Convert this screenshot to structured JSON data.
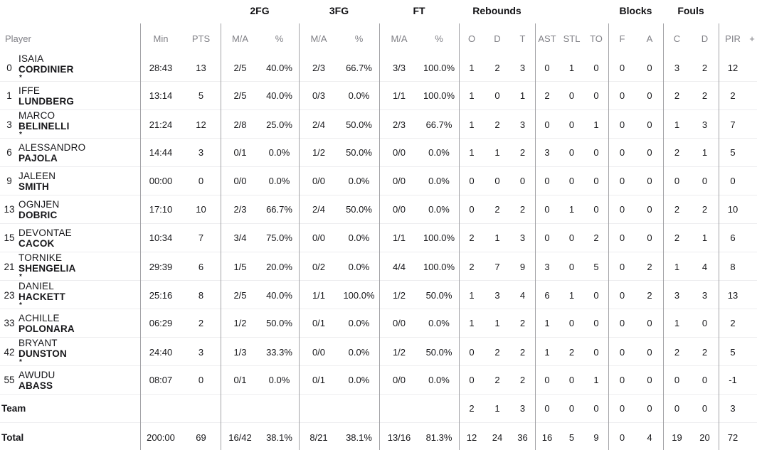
{
  "colors": {
    "background": "#ffffff",
    "text_dark": "#17171a",
    "header_gray": "#7f7f85",
    "vertical_line": "#a2a2a6",
    "row_line": "#ededef"
  },
  "groups": {
    "fg2": "2FG",
    "fg3": "3FG",
    "ft": "FT",
    "rebounds": "Rebounds",
    "blocks": "Blocks",
    "fouls": "Fouls"
  },
  "header": {
    "player": "Player",
    "min": "Min",
    "pts": "PTS",
    "ma": "M/A",
    "pct": "%",
    "o": "O",
    "d": "D",
    "t": "T",
    "ast": "AST",
    "stl": "STL",
    "to": "TO",
    "f": "F",
    "a": "A",
    "c": "C",
    "dd": "D",
    "pir": "PIR",
    "plus": "+"
  },
  "starter_mark": "*",
  "rows": [
    {
      "num": "0",
      "first": "ISAIA",
      "last": "CORDINIER",
      "starter": true,
      "min": "28:43",
      "pts": "13",
      "fg2": [
        "2/5",
        "40.0%"
      ],
      "fg3": [
        "2/3",
        "66.7%"
      ],
      "ft": [
        "3/3",
        "100.0%"
      ],
      "reb": [
        "1",
        "2",
        "3"
      ],
      "ast": "0",
      "stl": "1",
      "to": "0",
      "blocks": [
        "0",
        "0"
      ],
      "fouls": [
        "3",
        "2"
      ],
      "pir": "12"
    },
    {
      "num": "1",
      "first": "IFFE",
      "last": "LUNDBERG",
      "starter": false,
      "min": "13:14",
      "pts": "5",
      "fg2": [
        "2/5",
        "40.0%"
      ],
      "fg3": [
        "0/3",
        "0.0%"
      ],
      "ft": [
        "1/1",
        "100.0%"
      ],
      "reb": [
        "1",
        "0",
        "1"
      ],
      "ast": "2",
      "stl": "0",
      "to": "0",
      "blocks": [
        "0",
        "0"
      ],
      "fouls": [
        "2",
        "2"
      ],
      "pir": "2"
    },
    {
      "num": "3",
      "first": "MARCO",
      "last": "BELINELLI",
      "starter": true,
      "min": "21:24",
      "pts": "12",
      "fg2": [
        "2/8",
        "25.0%"
      ],
      "fg3": [
        "2/4",
        "50.0%"
      ],
      "ft": [
        "2/3",
        "66.7%"
      ],
      "reb": [
        "1",
        "2",
        "3"
      ],
      "ast": "0",
      "stl": "0",
      "to": "1",
      "blocks": [
        "0",
        "0"
      ],
      "fouls": [
        "1",
        "3"
      ],
      "pir": "7"
    },
    {
      "num": "6",
      "first": "ALESSANDRO",
      "last": "PAJOLA",
      "starter": false,
      "min": "14:44",
      "pts": "3",
      "fg2": [
        "0/1",
        "0.0%"
      ],
      "fg3": [
        "1/2",
        "50.0%"
      ],
      "ft": [
        "0/0",
        "0.0%"
      ],
      "reb": [
        "1",
        "1",
        "2"
      ],
      "ast": "3",
      "stl": "0",
      "to": "0",
      "blocks": [
        "0",
        "0"
      ],
      "fouls": [
        "2",
        "1"
      ],
      "pir": "5"
    },
    {
      "num": "9",
      "first": "JALEEN",
      "last": "SMITH",
      "starter": false,
      "min": "00:00",
      "pts": "0",
      "fg2": [
        "0/0",
        "0.0%"
      ],
      "fg3": [
        "0/0",
        "0.0%"
      ],
      "ft": [
        "0/0",
        "0.0%"
      ],
      "reb": [
        "0",
        "0",
        "0"
      ],
      "ast": "0",
      "stl": "0",
      "to": "0",
      "blocks": [
        "0",
        "0"
      ],
      "fouls": [
        "0",
        "0"
      ],
      "pir": "0"
    },
    {
      "num": "13",
      "first": "OGNJEN",
      "last": "DOBRIC",
      "starter": false,
      "min": "17:10",
      "pts": "10",
      "fg2": [
        "2/3",
        "66.7%"
      ],
      "fg3": [
        "2/4",
        "50.0%"
      ],
      "ft": [
        "0/0",
        "0.0%"
      ],
      "reb": [
        "0",
        "2",
        "2"
      ],
      "ast": "0",
      "stl": "1",
      "to": "0",
      "blocks": [
        "0",
        "0"
      ],
      "fouls": [
        "2",
        "2"
      ],
      "pir": "10"
    },
    {
      "num": "15",
      "first": "DEVONTAE",
      "last": "CACOK",
      "starter": false,
      "min": "10:34",
      "pts": "7",
      "fg2": [
        "3/4",
        "75.0%"
      ],
      "fg3": [
        "0/0",
        "0.0%"
      ],
      "ft": [
        "1/1",
        "100.0%"
      ],
      "reb": [
        "2",
        "1",
        "3"
      ],
      "ast": "0",
      "stl": "0",
      "to": "2",
      "blocks": [
        "0",
        "0"
      ],
      "fouls": [
        "2",
        "1"
      ],
      "pir": "6"
    },
    {
      "num": "21",
      "first": "TORNIKE",
      "last": "SHENGELIA",
      "starter": true,
      "min": "29:39",
      "pts": "6",
      "fg2": [
        "1/5",
        "20.0%"
      ],
      "fg3": [
        "0/2",
        "0.0%"
      ],
      "ft": [
        "4/4",
        "100.0%"
      ],
      "reb": [
        "2",
        "7",
        "9"
      ],
      "ast": "3",
      "stl": "0",
      "to": "5",
      "blocks": [
        "0",
        "2"
      ],
      "fouls": [
        "1",
        "4"
      ],
      "pir": "8"
    },
    {
      "num": "23",
      "first": "DANIEL",
      "last": "HACKETT",
      "starter": true,
      "min": "25:16",
      "pts": "8",
      "fg2": [
        "2/5",
        "40.0%"
      ],
      "fg3": [
        "1/1",
        "100.0%"
      ],
      "ft": [
        "1/2",
        "50.0%"
      ],
      "reb": [
        "1",
        "3",
        "4"
      ],
      "ast": "6",
      "stl": "1",
      "to": "0",
      "blocks": [
        "0",
        "2"
      ],
      "fouls": [
        "3",
        "3"
      ],
      "pir": "13"
    },
    {
      "num": "33",
      "first": "ACHILLE",
      "last": "POLONARA",
      "starter": false,
      "min": "06:29",
      "pts": "2",
      "fg2": [
        "1/2",
        "50.0%"
      ],
      "fg3": [
        "0/1",
        "0.0%"
      ],
      "ft": [
        "0/0",
        "0.0%"
      ],
      "reb": [
        "1",
        "1",
        "2"
      ],
      "ast": "1",
      "stl": "0",
      "to": "0",
      "blocks": [
        "0",
        "0"
      ],
      "fouls": [
        "1",
        "0"
      ],
      "pir": "2"
    },
    {
      "num": "42",
      "first": "BRYANT",
      "last": "DUNSTON",
      "starter": true,
      "min": "24:40",
      "pts": "3",
      "fg2": [
        "1/3",
        "33.3%"
      ],
      "fg3": [
        "0/0",
        "0.0%"
      ],
      "ft": [
        "1/2",
        "50.0%"
      ],
      "reb": [
        "0",
        "2",
        "2"
      ],
      "ast": "1",
      "stl": "2",
      "to": "0",
      "blocks": [
        "0",
        "0"
      ],
      "fouls": [
        "2",
        "2"
      ],
      "pir": "5"
    },
    {
      "num": "55",
      "first": "AWUDU",
      "last": "ABASS",
      "starter": false,
      "min": "08:07",
      "pts": "0",
      "fg2": [
        "0/1",
        "0.0%"
      ],
      "fg3": [
        "0/1",
        "0.0%"
      ],
      "ft": [
        "0/0",
        "0.0%"
      ],
      "reb": [
        "0",
        "2",
        "2"
      ],
      "ast": "0",
      "stl": "0",
      "to": "1",
      "blocks": [
        "0",
        "0"
      ],
      "fouls": [
        "0",
        "0"
      ],
      "pir": "-1"
    },
    {
      "label": "Team",
      "min": "",
      "pts": "",
      "fg2": [
        "",
        ""
      ],
      "fg3": [
        "",
        ""
      ],
      "ft": [
        "",
        ""
      ],
      "reb": [
        "2",
        "1",
        "3"
      ],
      "ast": "0",
      "stl": "0",
      "to": "0",
      "blocks": [
        "0",
        "0"
      ],
      "fouls": [
        "0",
        "0"
      ],
      "pir": "3"
    },
    {
      "label": "Total",
      "min": "200:00",
      "pts": "69",
      "fg2": [
        "16/42",
        "38.1%"
      ],
      "fg3": [
        "8/21",
        "38.1%"
      ],
      "ft": [
        "13/16",
        "81.3%"
      ],
      "reb": [
        "12",
        "24",
        "36"
      ],
      "ast": "16",
      "stl": "5",
      "to": "9",
      "blocks": [
        "0",
        "4"
      ],
      "fouls": [
        "19",
        "20"
      ],
      "pir": "72"
    }
  ]
}
